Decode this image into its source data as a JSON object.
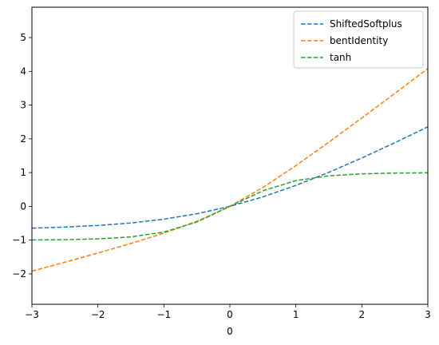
{
  "chart_data": {
    "type": "line",
    "title": "",
    "xlabel": "0",
    "ylabel": "",
    "xlim": [
      -3,
      3
    ],
    "ylim": [
      -2.9,
      5.9
    ],
    "xticks": [
      -3,
      -2,
      -1,
      0,
      1,
      2,
      3
    ],
    "xtick_labels": [
      "−3",
      "−2",
      "−1",
      "0",
      "1",
      "2",
      "3"
    ],
    "yticks": [
      -2,
      -1,
      0,
      1,
      2,
      3,
      4,
      5
    ],
    "ytick_labels": [
      "−2",
      "−1",
      "0",
      "1",
      "2",
      "3",
      "4",
      "5"
    ],
    "grid": false,
    "legend_position": "top-right",
    "line_style": "dashed",
    "x": [
      -3.0,
      -2.5,
      -2.0,
      -1.5,
      -1.0,
      -0.5,
      0.0,
      0.5,
      1.0,
      1.5,
      2.0,
      2.5,
      3.0
    ],
    "series": [
      {
        "name": "ShiftedSoftplus",
        "color": "#1f77b4",
        "values": [
          -0.644,
          -0.614,
          -0.566,
          -0.492,
          -0.38,
          -0.219,
          0.0,
          0.281,
          0.62,
          1.008,
          1.434,
          1.886,
          2.356
        ]
      },
      {
        "name": "bentIdentity",
        "color": "#ff7f0e",
        "values": [
          -1.919,
          -1.654,
          -1.382,
          -1.099,
          -0.793,
          -0.441,
          0.0,
          0.559,
          1.207,
          1.901,
          2.618,
          3.346,
          4.081
        ]
      },
      {
        "name": "tanh",
        "color": "#2ca02c",
        "values": [
          -0.995,
          -0.987,
          -0.964,
          -0.905,
          -0.762,
          -0.462,
          0.0,
          0.462,
          0.762,
          0.905,
          0.964,
          0.987,
          0.995
        ]
      }
    ]
  }
}
